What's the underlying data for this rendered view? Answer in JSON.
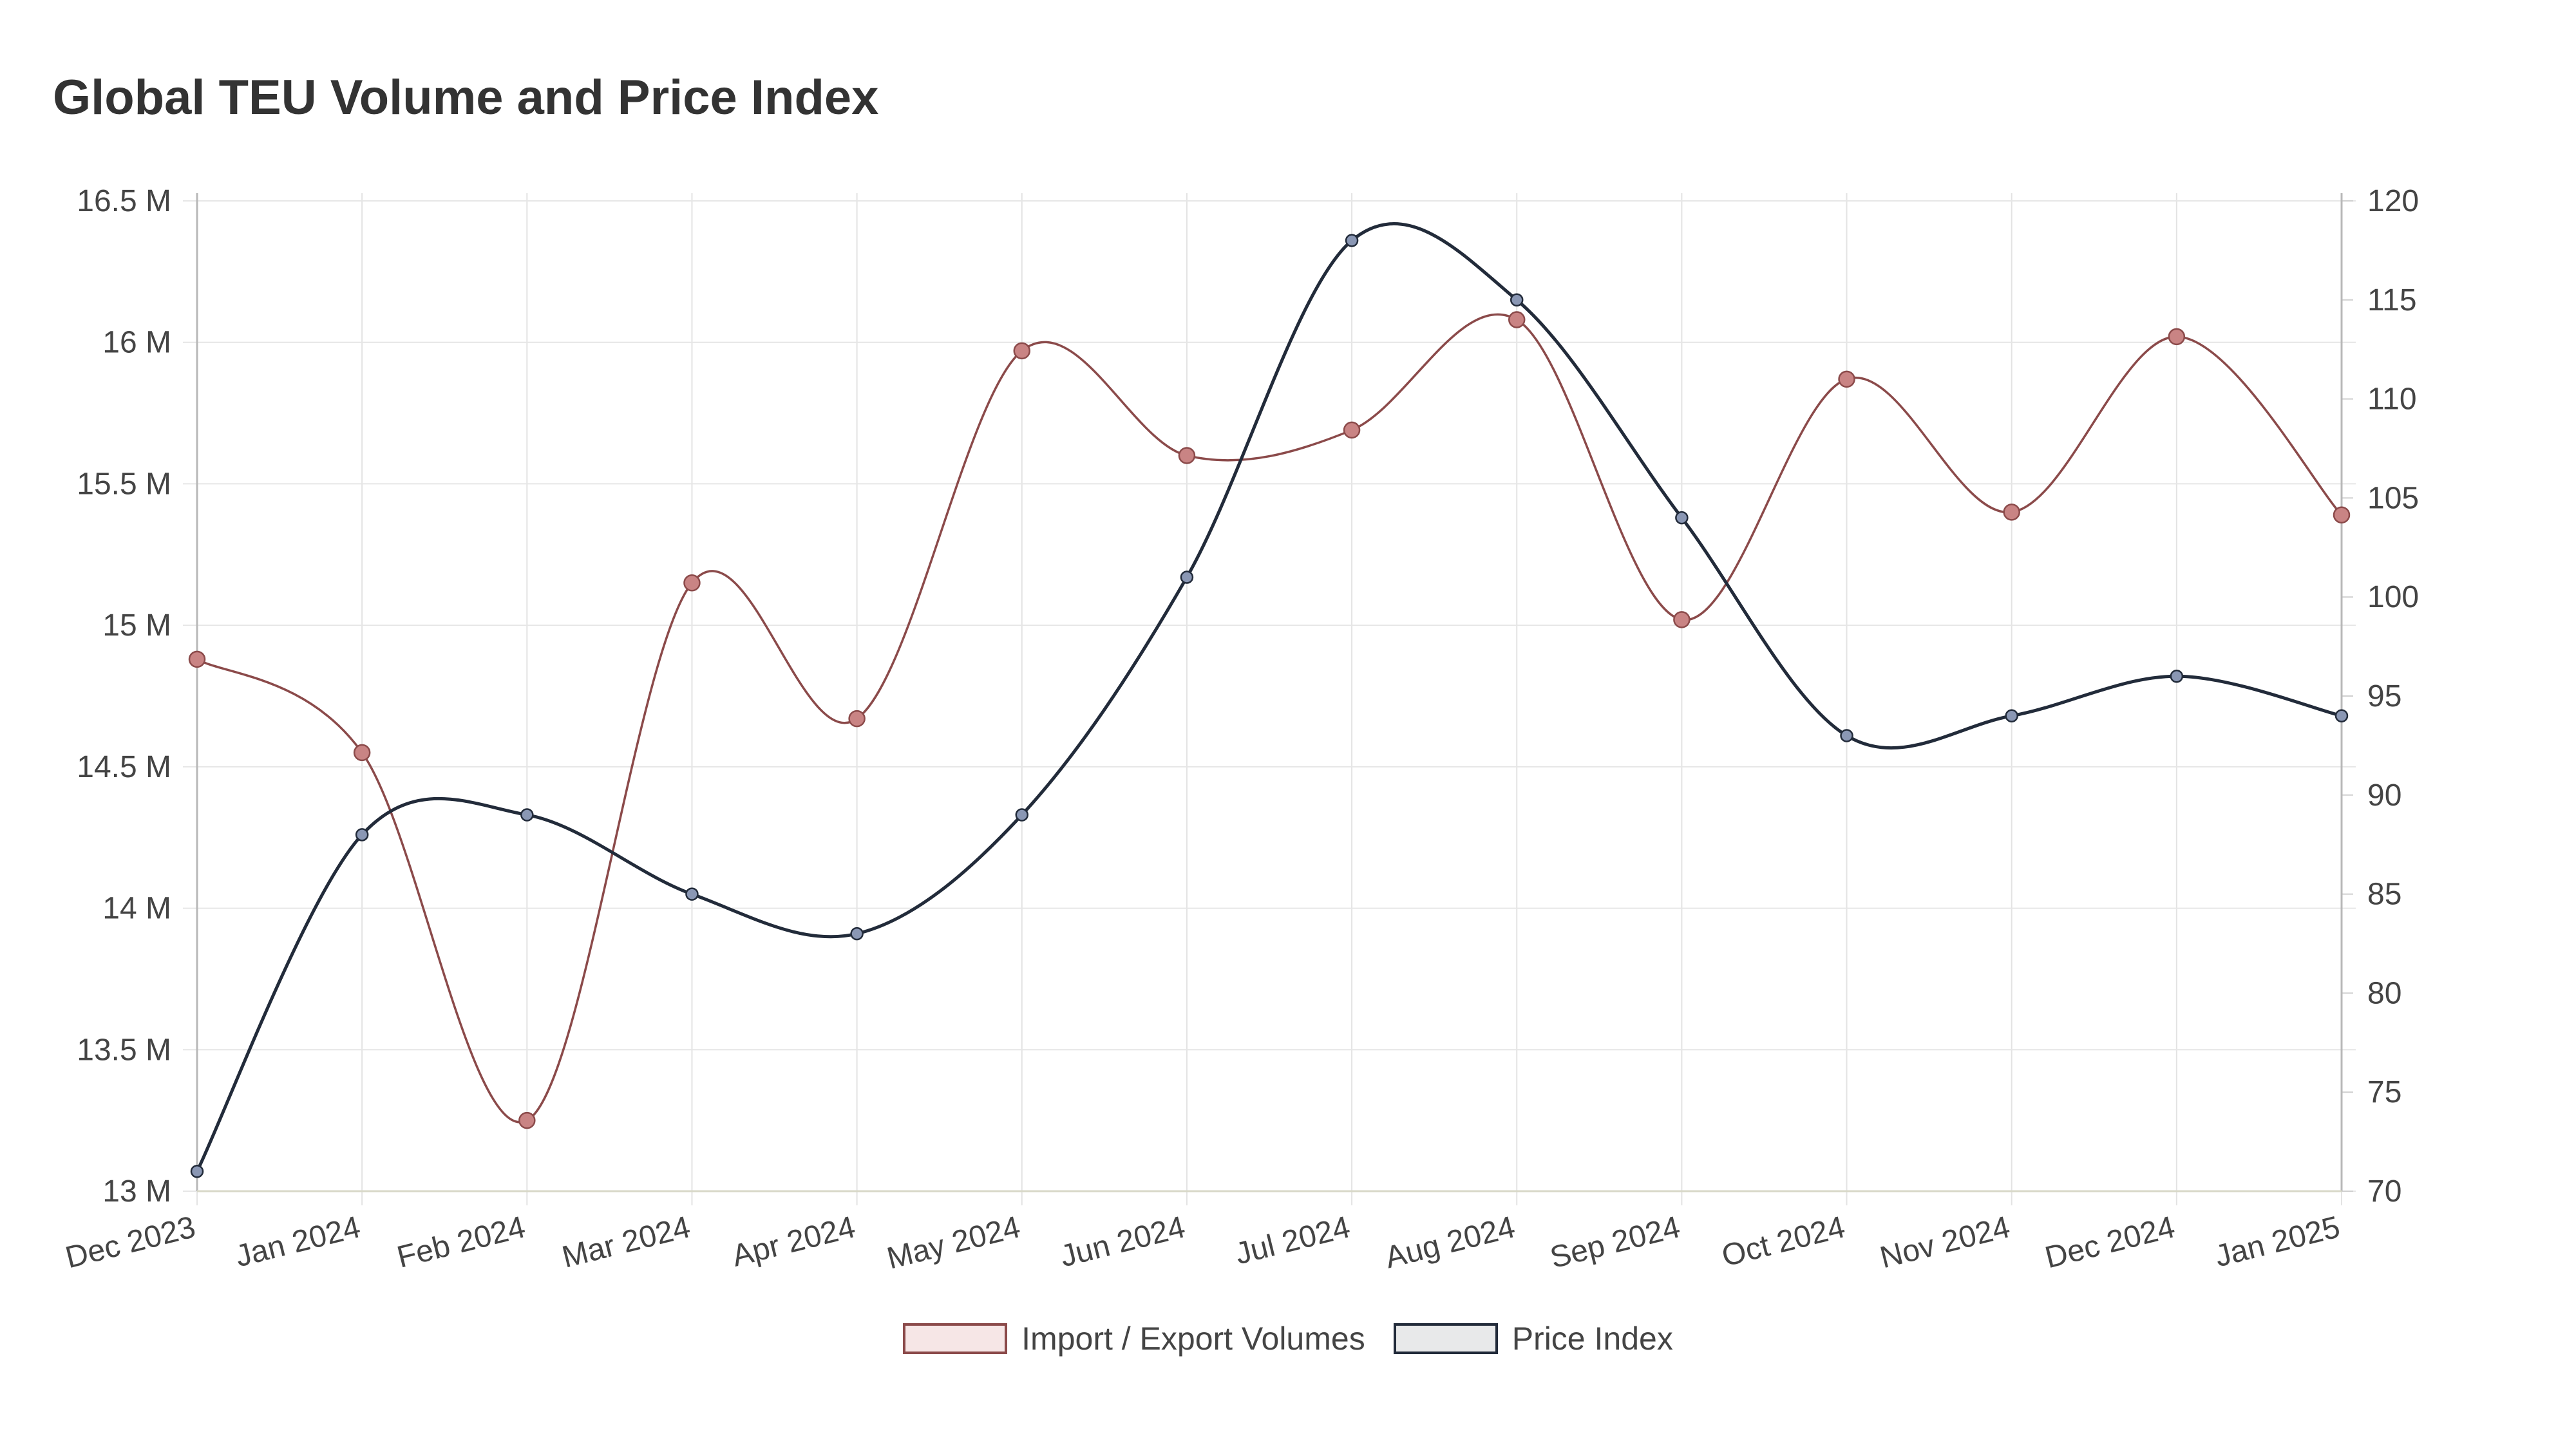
{
  "chart_data": {
    "type": "line",
    "title": "Global TEU Volume and Price Index",
    "categories": [
      "Dec 2023",
      "Jan 2024",
      "Feb 2024",
      "Mar 2024",
      "Apr 2024",
      "May 2024",
      "Jun 2024",
      "Jul 2024",
      "Aug 2024",
      "Sep 2024",
      "Oct 2024",
      "Nov 2024",
      "Dec 2024",
      "Jan 2025"
    ],
    "series": [
      {
        "name": "Import / Export Volumes",
        "axis": "left",
        "color": "#8b4a4a",
        "point_color": "#c98484",
        "fill": "#f6e6e6",
        "values": [
          14880000,
          14550000,
          13250000,
          15150000,
          14670000,
          15970000,
          15600000,
          15690000,
          16080000,
          15020000,
          15870000,
          15400000,
          16020000,
          15390000
        ]
      },
      {
        "name": "Price Index",
        "axis": "right",
        "color": "#222b3a",
        "point_color": "#8a97b4",
        "fill": "#e8e9ea",
        "values": [
          71,
          88,
          89,
          85,
          83,
          89,
          101,
          118,
          115,
          104,
          93,
          94,
          96,
          94
        ]
      }
    ],
    "left_axis": {
      "ylim": [
        13000000,
        16500000
      ],
      "ticks": [
        "13 M",
        "13.5 M",
        "14 M",
        "14.5 M",
        "15 M",
        "15.5 M",
        "16 M",
        "16.5 M"
      ]
    },
    "right_axis": {
      "ylim": [
        70,
        120
      ],
      "ticks": [
        "70",
        "75",
        "80",
        "85",
        "90",
        "95",
        "100",
        "105",
        "110",
        "115",
        "120"
      ]
    },
    "grid": true,
    "legend": "bottom-center"
  }
}
